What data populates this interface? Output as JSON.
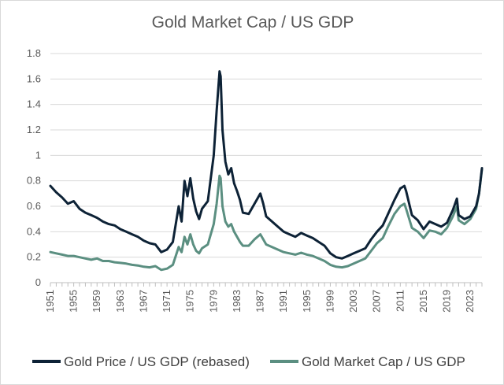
{
  "chart_data": {
    "type": "line",
    "title": "Gold Market Cap / US GDP",
    "xlabel": "",
    "ylabel": "",
    "xlim": [
      1951,
      2025
    ],
    "ylim": [
      0,
      1.8
    ],
    "y_ticks": [
      "0",
      "0.2",
      "0.4",
      "0.6",
      "0.8",
      "1",
      "1.2",
      "1.4",
      "1.6",
      "1.8"
    ],
    "x_ticks": [
      "1951",
      "1955",
      "1959",
      "1963",
      "1967",
      "1971",
      "1975",
      "1979",
      "1983",
      "1987",
      "1991",
      "1995",
      "1999",
      "2003",
      "2007",
      "2011",
      "2015",
      "2019",
      "2023"
    ],
    "grid": "horizontal",
    "legend": "bottom",
    "series": [
      {
        "name": "Gold Price / US GDP (rebased)",
        "color": "#0d2236",
        "x": [
          1951,
          1952,
          1953,
          1954,
          1955,
          1956,
          1957,
          1958,
          1959,
          1960,
          1961,
          1962,
          1963,
          1964,
          1965,
          1966,
          1967,
          1968,
          1969,
          1970,
          1971,
          1972,
          1973,
          1973.5,
          1974,
          1974.5,
          1975,
          1975.5,
          1976,
          1976.5,
          1977,
          1978,
          1979,
          1979.5,
          1980,
          1980.2,
          1980.5,
          1981,
          1981.5,
          1982,
          1982.5,
          1983,
          1983.5,
          1984,
          1985,
          1986,
          1987,
          1987.5,
          1988,
          1989,
          1990,
          1991,
          1992,
          1993,
          1994,
          1995,
          1996,
          1997,
          1998,
          1999,
          2000,
          2001,
          2002,
          2003,
          2004,
          2005,
          2006,
          2007,
          2008,
          2009,
          2010,
          2011,
          2011.7,
          2012,
          2013,
          2014,
          2015,
          2016,
          2017,
          2018,
          2019,
          2020,
          2020.7,
          2021,
          2022,
          2023,
          2024,
          2024.5,
          2025
        ],
        "values": [
          0.76,
          0.71,
          0.67,
          0.62,
          0.64,
          0.58,
          0.55,
          0.53,
          0.51,
          0.48,
          0.46,
          0.45,
          0.42,
          0.4,
          0.38,
          0.36,
          0.33,
          0.31,
          0.3,
          0.24,
          0.26,
          0.32,
          0.6,
          0.48,
          0.8,
          0.68,
          0.82,
          0.66,
          0.56,
          0.5,
          0.58,
          0.64,
          1.0,
          1.35,
          1.66,
          1.62,
          1.2,
          0.95,
          0.85,
          0.9,
          0.78,
          0.72,
          0.65,
          0.55,
          0.54,
          0.62,
          0.7,
          0.62,
          0.52,
          0.48,
          0.44,
          0.4,
          0.38,
          0.36,
          0.39,
          0.37,
          0.35,
          0.32,
          0.29,
          0.23,
          0.2,
          0.19,
          0.21,
          0.23,
          0.25,
          0.27,
          0.34,
          0.4,
          0.45,
          0.55,
          0.65,
          0.74,
          0.76,
          0.72,
          0.53,
          0.49,
          0.42,
          0.48,
          0.46,
          0.44,
          0.47,
          0.57,
          0.66,
          0.53,
          0.5,
          0.52,
          0.6,
          0.7,
          0.9
        ]
      },
      {
        "name": "Gold Market Cap / US GDP",
        "color": "#5b8f81",
        "x": [
          1951,
          1952,
          1953,
          1954,
          1955,
          1956,
          1957,
          1958,
          1959,
          1960,
          1961,
          1962,
          1963,
          1964,
          1965,
          1966,
          1967,
          1968,
          1969,
          1970,
          1971,
          1972,
          1973,
          1973.5,
          1974,
          1974.5,
          1975,
          1975.5,
          1976,
          1976.5,
          1977,
          1978,
          1979,
          1979.5,
          1980,
          1980.2,
          1980.5,
          1981,
          1981.5,
          1982,
          1982.5,
          1983,
          1983.5,
          1984,
          1985,
          1986,
          1987,
          1987.5,
          1988,
          1989,
          1990,
          1991,
          1992,
          1993,
          1994,
          1995,
          1996,
          1997,
          1998,
          1999,
          2000,
          2001,
          2002,
          2003,
          2004,
          2005,
          2006,
          2007,
          2008,
          2009,
          2010,
          2011,
          2011.7,
          2012,
          2013,
          2014,
          2015,
          2016,
          2017,
          2018,
          2019,
          2020,
          2020.7,
          2021,
          2022,
          2023,
          2024,
          2024.5,
          2025
        ],
        "values": [
          0.24,
          0.23,
          0.22,
          0.21,
          0.21,
          0.2,
          0.19,
          0.18,
          0.19,
          0.17,
          0.17,
          0.16,
          0.155,
          0.15,
          0.14,
          0.135,
          0.125,
          0.12,
          0.13,
          0.1,
          0.11,
          0.14,
          0.28,
          0.24,
          0.36,
          0.3,
          0.38,
          0.3,
          0.25,
          0.23,
          0.27,
          0.3,
          0.46,
          0.62,
          0.84,
          0.82,
          0.6,
          0.48,
          0.44,
          0.46,
          0.4,
          0.36,
          0.32,
          0.29,
          0.29,
          0.34,
          0.38,
          0.34,
          0.3,
          0.28,
          0.26,
          0.24,
          0.23,
          0.22,
          0.235,
          0.22,
          0.21,
          0.19,
          0.17,
          0.14,
          0.125,
          0.12,
          0.13,
          0.15,
          0.17,
          0.19,
          0.25,
          0.31,
          0.35,
          0.45,
          0.54,
          0.6,
          0.62,
          0.58,
          0.43,
          0.4,
          0.35,
          0.41,
          0.4,
          0.38,
          0.43,
          0.52,
          0.6,
          0.49,
          0.46,
          0.5,
          0.58,
          0.7,
          0.89
        ]
      }
    ]
  }
}
